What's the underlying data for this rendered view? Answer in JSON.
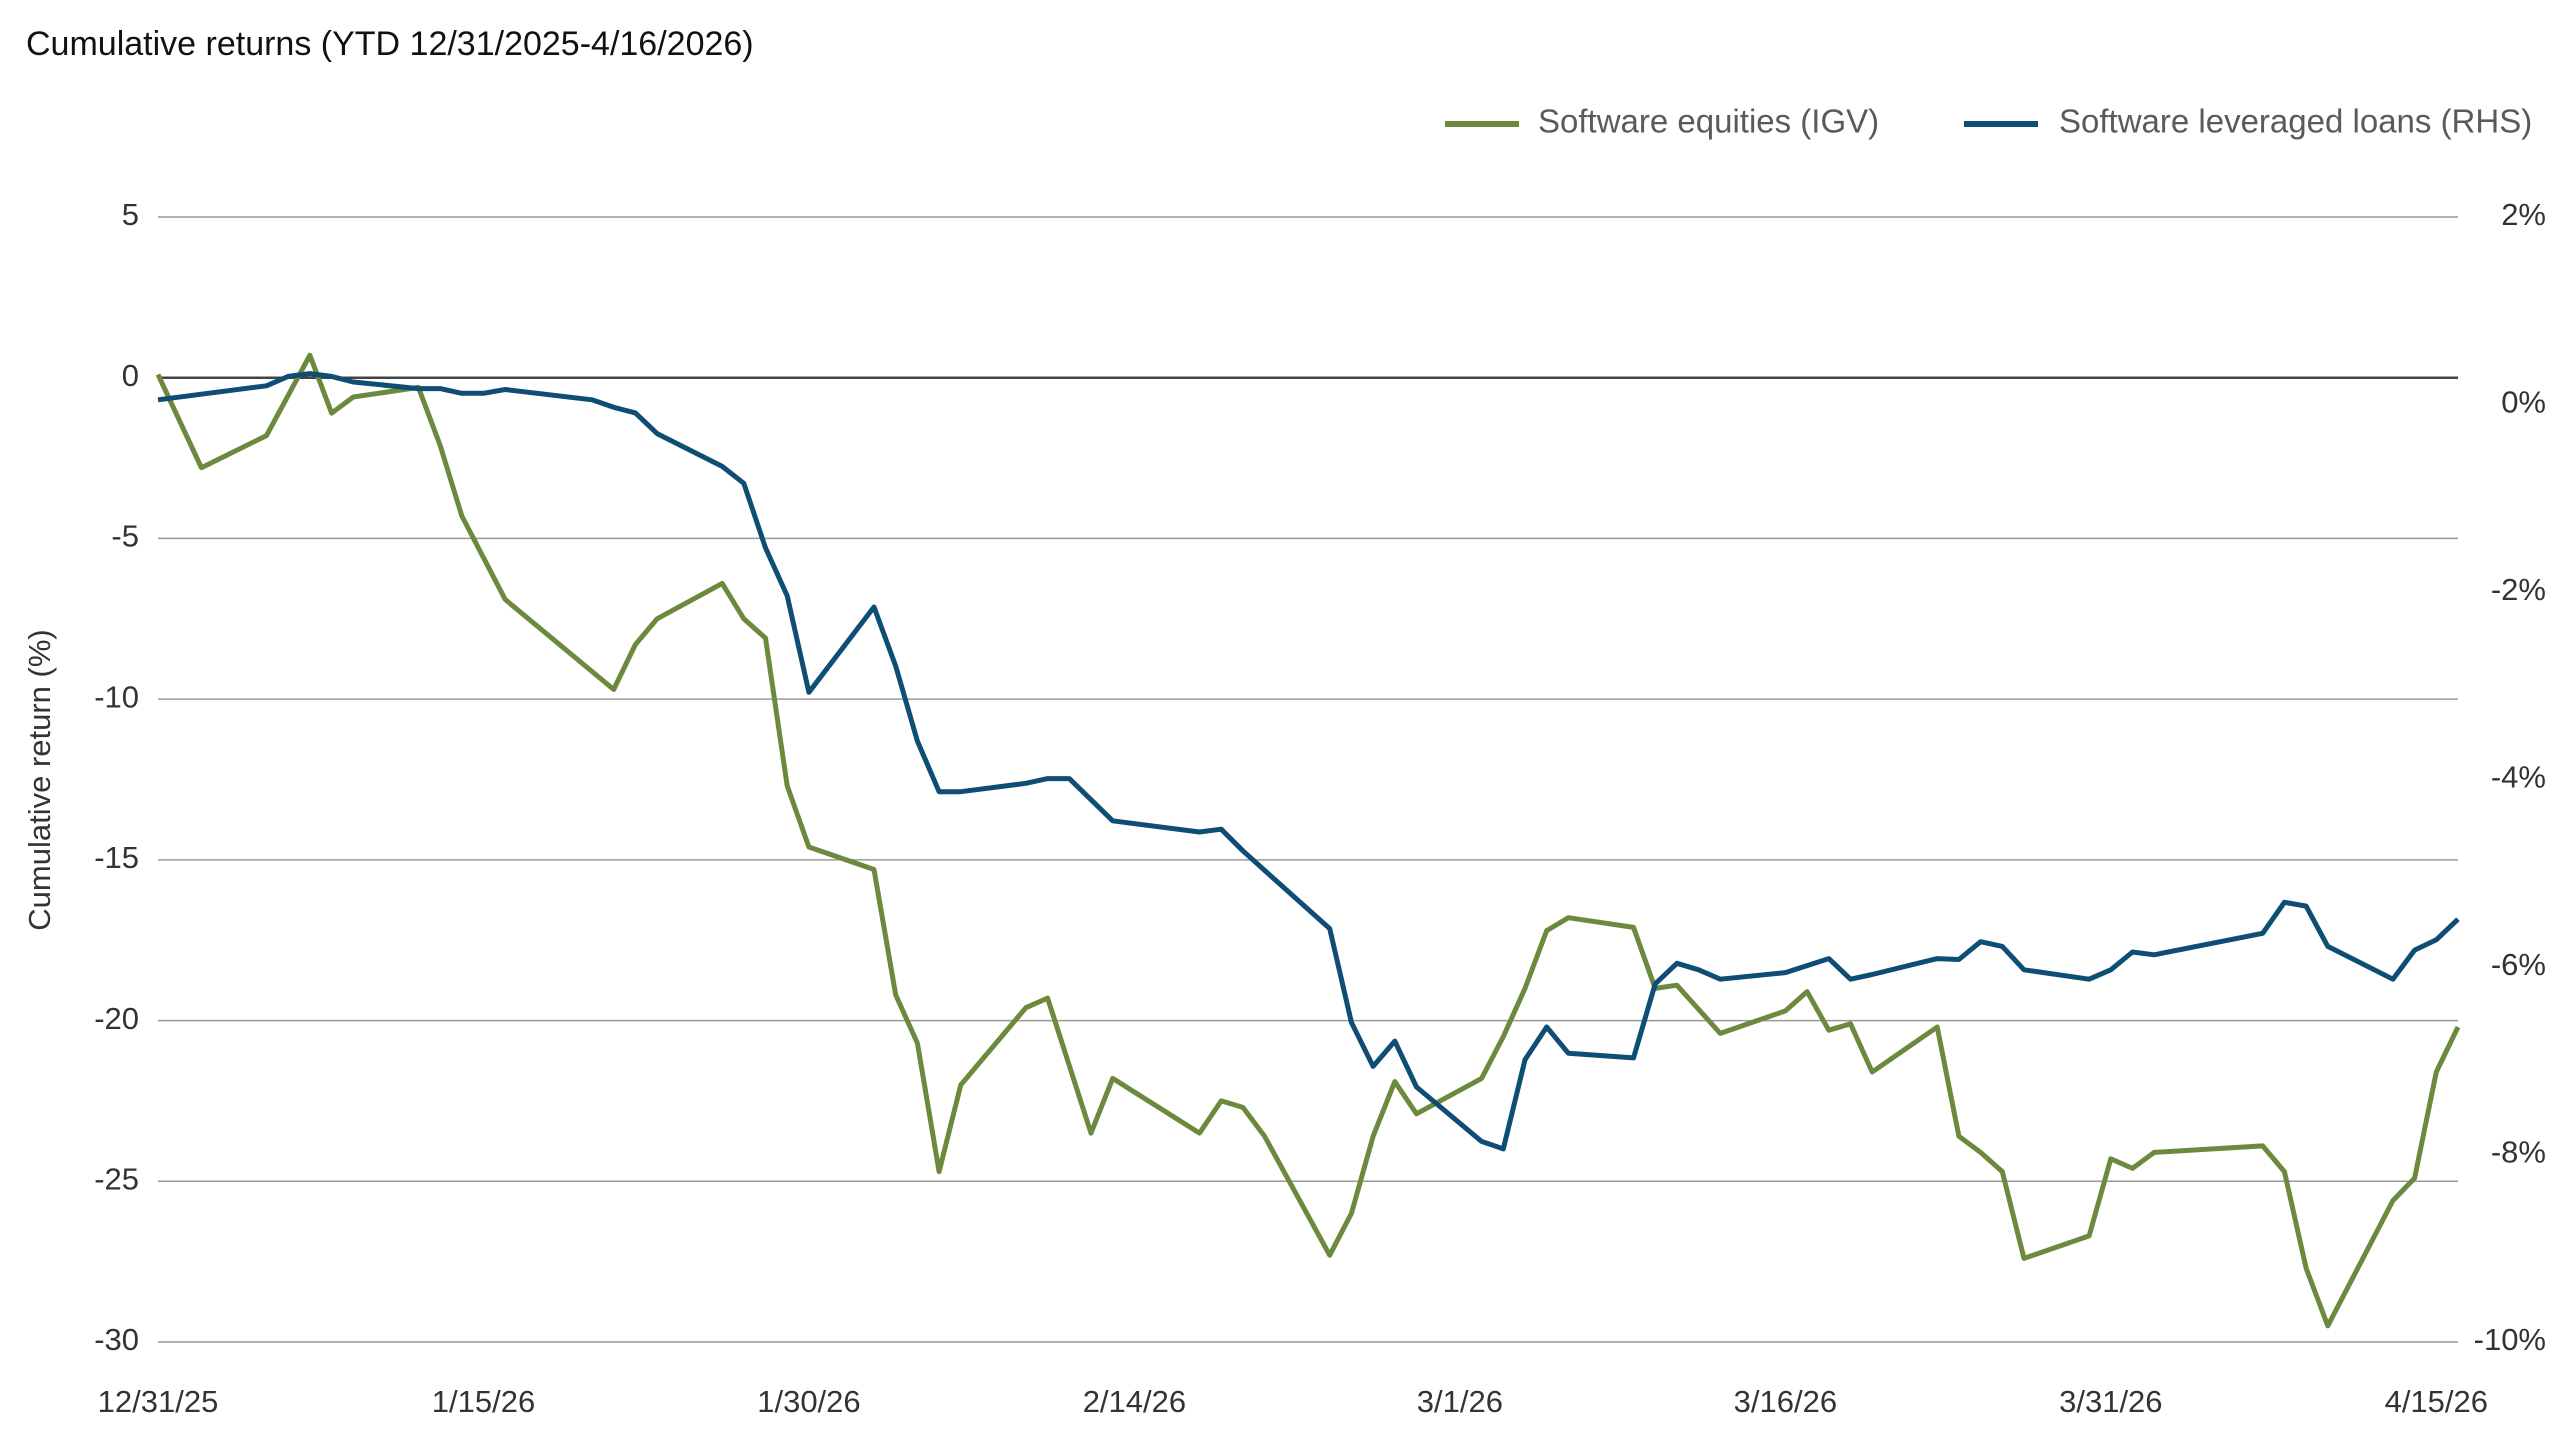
{
  "chart_data": {
    "type": "line",
    "title": "Cumulative returns (YTD 12/31/2025-4/16/2026)",
    "ylabel": "Cumulative return (%)",
    "xlim": [
      0,
      106
    ],
    "xticks": [
      {
        "value": 0,
        "label": "12/31/25"
      },
      {
        "value": 15,
        "label": "1/15/26"
      },
      {
        "value": 30,
        "label": "1/30/26"
      },
      {
        "value": 45,
        "label": "2/14/26"
      },
      {
        "value": 60,
        "label": "3/1/26"
      },
      {
        "value": 75,
        "label": "3/16/26"
      },
      {
        "value": 90,
        "label": "3/31/26"
      },
      {
        "value": 105,
        "label": "4/15/26"
      }
    ],
    "ylim": [
      -30,
      5
    ],
    "yticks": [
      -30,
      -25,
      -20,
      -15,
      -10,
      -5,
      0,
      5
    ],
    "y2lim": [
      -10,
      2
    ],
    "y2ticks": [
      {
        "value": -10,
        "label": "-10%"
      },
      {
        "value": -8,
        "label": "-8%"
      },
      {
        "value": -6,
        "label": "-6%"
      },
      {
        "value": -4,
        "label": "-4%"
      },
      {
        "value": -2,
        "label": "-2%"
      },
      {
        "value": 0,
        "label": "0%"
      },
      {
        "value": 2,
        "label": "2%"
      }
    ],
    "grid": true,
    "legend": "top-right",
    "series": [
      {
        "name": "Software equities (IGV)",
        "color": "#6b8a3e",
        "axis": "y",
        "x": [
          0,
          2,
          5,
          7,
          8,
          9,
          12,
          13,
          14,
          15,
          16,
          21,
          22,
          23,
          26,
          27,
          28,
          29,
          30,
          33,
          34,
          35,
          36,
          37,
          40,
          41,
          43,
          44,
          48,
          49,
          50,
          51,
          54,
          55,
          56,
          57,
          58,
          61,
          62,
          63,
          64,
          65,
          68,
          69,
          70,
          72,
          75,
          76,
          77,
          78,
          79,
          82,
          83,
          84,
          85,
          86,
          89,
          90,
          91,
          92,
          97,
          98,
          99,
          100,
          103,
          104,
          105,
          106
        ],
        "values": [
          0.1,
          -2.8,
          -1.8,
          0.7,
          -1.1,
          -0.6,
          -0.3,
          -2.1,
          -4.3,
          -5.6,
          -6.9,
          -9.7,
          -8.3,
          -7.5,
          -6.4,
          -7.5,
          -8.1,
          -12.7,
          -14.6,
          -15.3,
          -19.2,
          -20.7,
          -24.7,
          -22.0,
          -19.6,
          -19.3,
          -23.5,
          -21.8,
          -23.5,
          -22.5,
          -22.7,
          -23.6,
          -27.3,
          -26.0,
          -23.6,
          -21.9,
          -22.9,
          -21.8,
          -20.5,
          -19.0,
          -17.2,
          -16.8,
          -17.1,
          -19.0,
          -18.9,
          -20.4,
          -19.7,
          -19.1,
          -20.3,
          -20.1,
          -21.6,
          -20.2,
          -23.6,
          -24.1,
          -24.7,
          -27.4,
          -26.7,
          -24.3,
          -24.6,
          -24.1,
          -23.9,
          -24.7,
          -27.7,
          -29.5,
          -25.6,
          -24.9,
          -21.6,
          -20.2
        ]
      },
      {
        "name": "Software leveraged loans (RHS)",
        "color": "#0e4d74",
        "axis": "y2",
        "x": [
          0,
          5,
          6,
          7,
          8,
          9,
          12,
          13,
          14,
          15,
          16,
          20,
          21,
          22,
          23,
          26,
          27,
          28,
          29,
          30,
          33,
          34,
          35,
          36,
          37,
          40,
          41,
          42,
          44,
          48,
          49,
          50,
          51,
          54,
          55,
          56,
          57,
          58,
          61,
          62,
          63,
          64,
          65,
          68,
          69,
          70,
          71,
          72,
          75,
          77,
          78,
          79,
          82,
          83,
          84,
          85,
          86,
          89,
          90,
          91,
          92,
          97,
          98,
          99,
          100,
          103,
          104,
          105,
          106
        ],
        "values": [
          0.05,
          0.2,
          0.3,
          0.33,
          0.3,
          0.24,
          0.17,
          0.17,
          0.12,
          0.12,
          0.16,
          0.05,
          -0.03,
          -0.09,
          -0.31,
          -0.66,
          -0.84,
          -1.53,
          -2.04,
          -3.07,
          -2.16,
          -2.79,
          -3.59,
          -4.13,
          -4.13,
          -4.04,
          -3.99,
          -3.99,
          -4.44,
          -4.56,
          -4.53,
          -4.76,
          -4.97,
          -5.59,
          -6.59,
          -7.06,
          -6.79,
          -7.28,
          -7.86,
          -7.94,
          -6.99,
          -6.64,
          -6.92,
          -6.97,
          -6.18,
          -5.96,
          -6.03,
          -6.13,
          -6.06,
          -5.91,
          -6.13,
          -6.08,
          -5.91,
          -5.92,
          -5.73,
          -5.78,
          -6.03,
          -6.13,
          -6.03,
          -5.84,
          -5.87,
          -5.64,
          -5.31,
          -5.35,
          -5.78,
          -6.13,
          -5.82,
          -5.71,
          -5.49
        ]
      }
    ]
  }
}
